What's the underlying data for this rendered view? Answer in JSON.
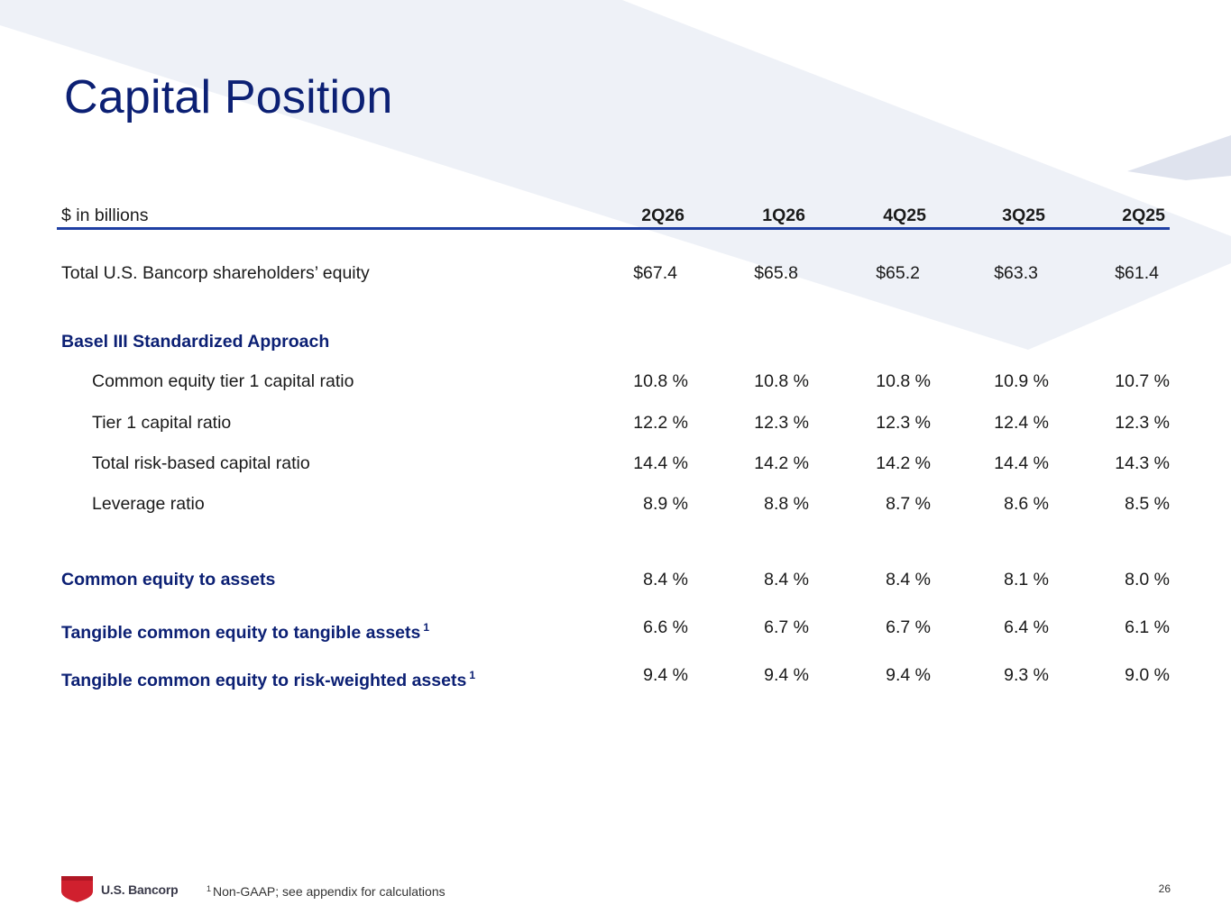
{
  "title": "Capital Position",
  "table": {
    "unit_label": "$ in billions",
    "periods": [
      "2Q26",
      "1Q26",
      "4Q25",
      "3Q25",
      "2Q25"
    ],
    "equity_row": {
      "label": "Total U.S. Bancorp shareholders’ equity",
      "values": [
        "$67.4",
        "$65.8",
        "$65.2",
        "$63.3",
        "$61.4"
      ]
    },
    "basel_section": "Basel III Standardized Approach",
    "basel_rows": [
      {
        "label": "Common equity tier 1 capital ratio",
        "values": [
          "10.8 %",
          "10.8 %",
          "10.8 %",
          "10.9 %",
          "10.7 %"
        ]
      },
      {
        "label": "Tier 1 capital ratio",
        "values": [
          "12.2 %",
          "12.3 %",
          "12.3 %",
          "12.4 %",
          "12.3 %"
        ]
      },
      {
        "label": "Total risk-based capital ratio",
        "values": [
          "14.4 %",
          "14.2 %",
          "14.2 %",
          "14.4 %",
          "14.3 %"
        ]
      },
      {
        "label": "Leverage ratio",
        "values": [
          "8.9 %",
          "8.8 %",
          "8.7 %",
          "8.6 %",
          "8.5 %"
        ]
      }
    ],
    "other_rows": [
      {
        "label": "Common equity to assets",
        "footnote": "",
        "values": [
          "8.4 %",
          "8.4 %",
          "8.4 %",
          "8.1 %",
          "8.0 %"
        ]
      },
      {
        "label": "Tangible common equity to tangible assets",
        "footnote": "1",
        "values": [
          "6.6 %",
          "6.7 %",
          "6.7 %",
          "6.4 %",
          "6.1 %"
        ]
      },
      {
        "label": "Tangible common equity to risk-weighted assets",
        "footnote": "1",
        "values": [
          "9.4 %",
          "9.4 %",
          "9.4 %",
          "9.3 %",
          "9.0 %"
        ]
      }
    ]
  },
  "footer": {
    "logo_text": "U.S. Bancorp",
    "footnote_marker": "1",
    "footnote_text": "Non-GAAP; see appendix for calculations",
    "page_number": "26"
  },
  "colors": {
    "title": "#0c2074",
    "section_label": "#0c2074",
    "header_rule": "#1f3fa3",
    "background_shape": "#eef1f7",
    "logo_red": "#d0202e"
  },
  "icons": [
    "bank-shield-logo-icon"
  ]
}
